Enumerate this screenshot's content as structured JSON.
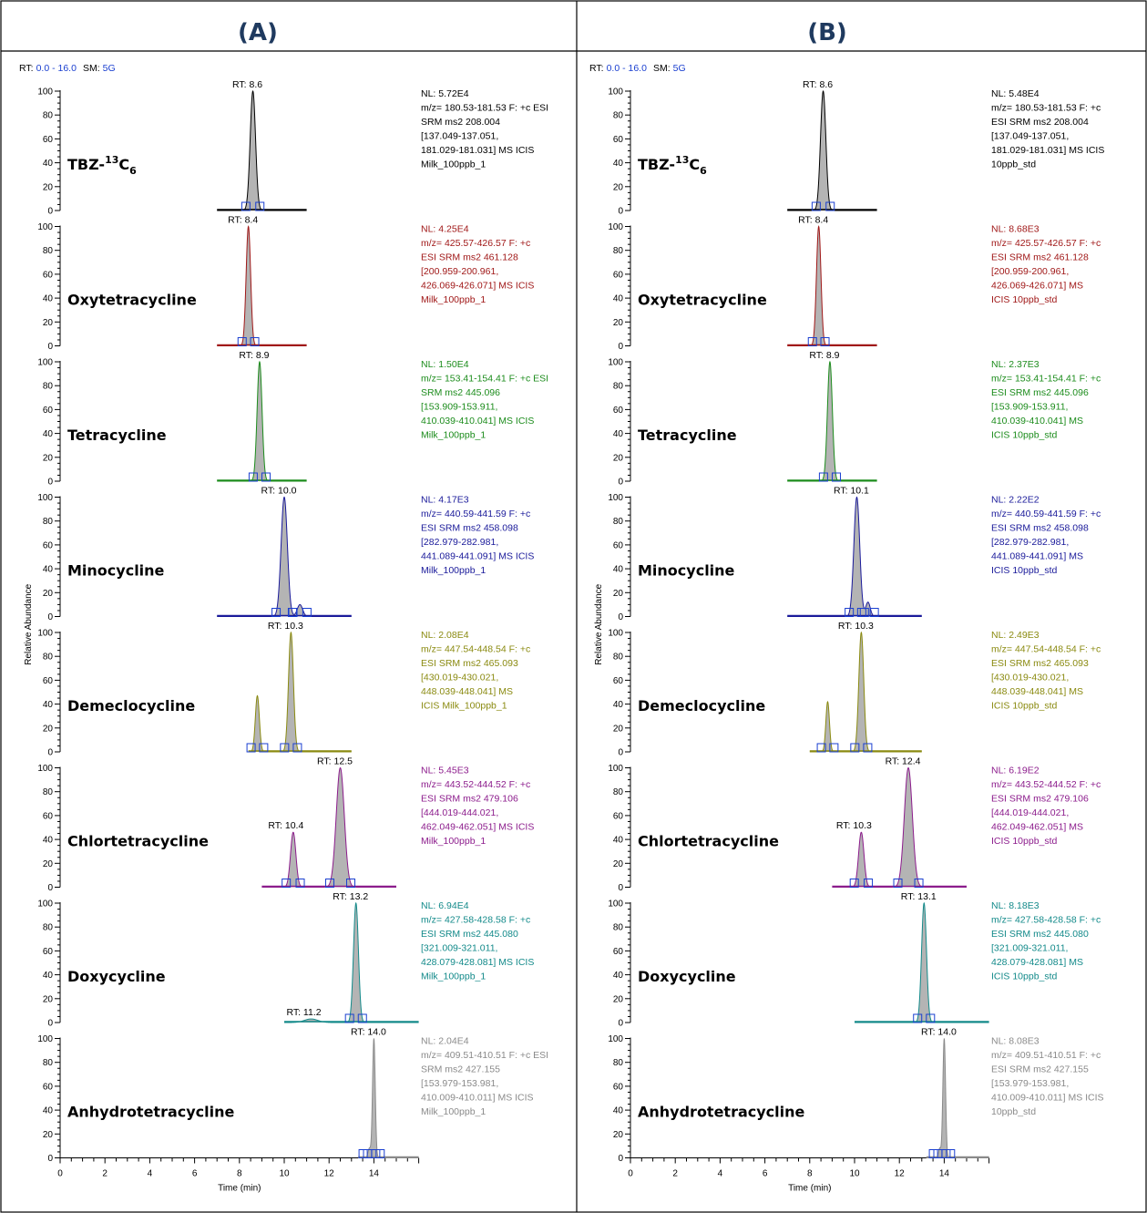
{
  "panels": [
    {
      "id": "A",
      "title": "(A)",
      "header": {
        "rt_prefix": "RT:",
        "rt_range": "0.0 - 16.0",
        "sm_prefix": "SM:",
        "sm_value": "5G"
      },
      "traces": [
        {
          "compound": "TBZ-",
          "sup": "13",
          "sub": "6",
          "rt_labels": [
            {
              "text": "RT: 8.6",
              "x": 8.6
            }
          ],
          "meta": [
            "NL: 5.72E4",
            "m/z= 180.53-181.53 F: +c ESI",
            "SRM ms2 208.004",
            "[137.049-137.051,",
            "181.029-181.031] MS ICIS",
            "Milk_100ppb_1"
          ]
        },
        {
          "compound": "Oxytetracycline",
          "rt_labels": [
            {
              "text": "RT: 8.4",
              "x": 8.4
            }
          ],
          "meta": [
            "NL: 4.25E4",
            "m/z= 425.57-426.57 F: +c",
            "ESI SRM ms2 461.128",
            "[200.959-200.961,",
            "426.069-426.071] MS ICIS",
            "Milk_100ppb_1"
          ]
        },
        {
          "compound": "Tetracycline",
          "rt_labels": [
            {
              "text": "RT: 8.9",
              "x": 8.9
            }
          ],
          "meta": [
            "NL: 1.50E4",
            "m/z= 153.41-154.41 F: +c ESI",
            "SRM ms2 445.096",
            "[153.909-153.911,",
            "410.039-410.041] MS ICIS",
            "Milk_100ppb_1"
          ]
        },
        {
          "compound": "Minocycline",
          "rt_labels": [
            {
              "text": "RT: 10.0",
              "x": 10.0
            }
          ],
          "meta": [
            "NL: 4.17E3",
            "m/z= 440.59-441.59 F: +c",
            "ESI SRM ms2 458.098",
            "[282.979-282.981,",
            "441.089-441.091] MS ICIS",
            "Milk_100ppb_1"
          ]
        },
        {
          "compound": "Demeclocycline",
          "rt_labels": [
            {
              "text": "RT: 10.3",
              "x": 10.3
            }
          ],
          "meta": [
            "NL: 2.08E4",
            "m/z= 447.54-448.54 F: +c",
            "ESI SRM ms2 465.093",
            "[430.019-430.021,",
            "448.039-448.041] MS",
            "ICIS Milk_100ppb_1"
          ]
        },
        {
          "compound": "Chlortetracycline",
          "rt_labels": [
            {
              "text": "RT: 12.5",
              "x": 12.5
            },
            {
              "text": "RT: 10.4",
              "x": 10.4
            }
          ],
          "meta": [
            "NL: 5.45E3",
            "m/z= 443.52-444.52 F: +c",
            "ESI SRM ms2 479.106",
            "[444.019-444.021,",
            "462.049-462.051] MS ICIS",
            "Milk_100ppb_1"
          ]
        },
        {
          "compound": "Doxycycline",
          "rt_labels": [
            {
              "text": "RT: 13.2",
              "x": 13.2
            },
            {
              "text": "RT: 11.2",
              "x": 11.2
            }
          ],
          "meta": [
            "NL: 6.94E4",
            "m/z= 427.58-428.58 F: +c",
            "ESI SRM ms2 445.080",
            "[321.009-321.011,",
            "428.079-428.081] MS ICIS",
            "Milk_100ppb_1"
          ]
        },
        {
          "compound": "Anhydrotetracycline",
          "rt_labels": [
            {
              "text": "RT: 14.0",
              "x": 14.0
            }
          ],
          "meta": [
            "NL: 2.04E4",
            "m/z= 409.51-410.51 F: +c ESI",
            "SRM ms2 427.155",
            "[153.979-153.981,",
            "410.009-410.011] MS ICIS",
            "Milk_100ppb_1"
          ]
        }
      ]
    },
    {
      "id": "B",
      "title": "(B)",
      "header": {
        "rt_prefix": "RT:",
        "rt_range": "0.0 - 16.0",
        "sm_prefix": "SM:",
        "sm_value": "5G"
      },
      "traces": [
        {
          "compound": "TBZ-",
          "sup": "13",
          "sub": "6",
          "rt_labels": [
            {
              "text": "RT: 8.6",
              "x": 8.6
            }
          ],
          "meta": [
            "NL: 5.48E4",
            "m/z= 180.53-181.53 F: +c",
            "ESI SRM ms2 208.004",
            "[137.049-137.051,",
            "181.029-181.031] MS ICIS",
            "10ppb_std"
          ]
        },
        {
          "compound": "Oxytetracycline",
          "rt_labels": [
            {
              "text": "RT: 8.4",
              "x": 8.4
            }
          ],
          "meta": [
            "NL: 8.68E3",
            "m/z= 425.57-426.57 F: +c",
            "ESI SRM ms2 461.128",
            "[200.959-200.961,",
            "426.069-426.071] MS",
            "ICIS 10ppb_std"
          ]
        },
        {
          "compound": "Tetracycline",
          "rt_labels": [
            {
              "text": "RT: 8.9",
              "x": 8.9
            }
          ],
          "meta": [
            "NL: 2.37E3",
            "m/z= 153.41-154.41 F: +c",
            "ESI SRM ms2 445.096",
            "[153.909-153.911,",
            "410.039-410.041] MS",
            "ICIS 10ppb_std"
          ]
        },
        {
          "compound": "Minocycline",
          "rt_labels": [
            {
              "text": "RT: 10.1",
              "x": 10.1
            }
          ],
          "meta": [
            "NL: 2.22E2",
            "m/z= 440.59-441.59 F: +c",
            "ESI SRM ms2 458.098",
            "[282.979-282.981,",
            "441.089-441.091] MS",
            "ICIS 10ppb_std"
          ]
        },
        {
          "compound": "Demeclocycline",
          "rt_labels": [
            {
              "text": "RT: 10.3",
              "x": 10.3
            }
          ],
          "meta": [
            "NL: 2.49E3",
            "m/z= 447.54-448.54 F: +c",
            "ESI SRM ms2 465.093",
            "[430.019-430.021,",
            "448.039-448.041] MS",
            "ICIS 10ppb_std"
          ]
        },
        {
          "compound": "Chlortetracycline",
          "rt_labels": [
            {
              "text": "RT: 12.4",
              "x": 12.4
            },
            {
              "text": "RT: 10.3",
              "x": 10.3
            }
          ],
          "meta": [
            "NL: 6.19E2",
            "m/z= 443.52-444.52 F: +c",
            "ESI SRM ms2 479.106",
            "[444.019-444.021,",
            "462.049-462.051] MS",
            "ICIS 10ppb_std"
          ]
        },
        {
          "compound": "Doxycycline",
          "rt_labels": [
            {
              "text": "RT: 13.1",
              "x": 13.1
            }
          ],
          "meta": [
            "NL: 8.18E3",
            "m/z= 427.58-428.58 F: +c",
            "ESI SRM ms2 445.080",
            "[321.009-321.011,",
            "428.079-428.081] MS",
            "ICIS 10ppb_std"
          ]
        },
        {
          "compound": "Anhydrotetracycline",
          "rt_labels": [
            {
              "text": "RT: 14.0",
              "x": 14.0
            }
          ],
          "meta": [
            "NL: 8.08E3",
            "m/z= 409.51-410.51 F: +c",
            "ESI SRM ms2 427.155",
            "[153.979-153.981,",
            "410.009-410.011] MS ICIS",
            "10ppb_std"
          ]
        }
      ]
    }
  ],
  "axis": {
    "ylabel": "Relative Abundance",
    "xlabel": "Time (min)",
    "x_ticks": [
      "0",
      "2",
      "4",
      "6",
      "8",
      "10",
      "12",
      "14"
    ],
    "y_ticks": [
      "0",
      "20",
      "40",
      "60",
      "80",
      "100"
    ]
  },
  "colors": [
    "#000000",
    "#a01818",
    "#1c8c1c",
    "#1a1a9a",
    "#8a8a10",
    "#8c1c8c",
    "#138a8a",
    "#8a8a8a"
  ],
  "chart_data": {
    "type": "line",
    "x_unit": "min",
    "xlabel": "Time (min)",
    "ylabel": "Relative Abundance",
    "xlim": [
      0,
      16
    ],
    "ylim": [
      0,
      100
    ],
    "panels": [
      {
        "name": "A",
        "series": [
          {
            "name": "TBZ-13C6",
            "peaks": [
              {
                "rt": 8.6,
                "height": 100,
                "width": 0.12
              }
            ],
            "baseline_range": [
              7,
              11
            ]
          },
          {
            "name": "Oxytetracycline",
            "peaks": [
              {
                "rt": 8.4,
                "height": 100,
                "width": 0.1
              }
            ],
            "baseline_range": [
              7,
              11
            ]
          },
          {
            "name": "Tetracycline",
            "peaks": [
              {
                "rt": 8.9,
                "height": 100,
                "width": 0.11
              }
            ],
            "baseline_range": [
              7,
              11
            ]
          },
          {
            "name": "Minocycline",
            "peaks": [
              {
                "rt": 10.0,
                "height": 100,
                "width": 0.14
              },
              {
                "rt": 10.7,
                "height": 10,
                "width": 0.12
              }
            ],
            "baseline_range": [
              7,
              13
            ]
          },
          {
            "name": "Demeclocycline",
            "peaks": [
              {
                "rt": 8.8,
                "height": 47,
                "width": 0.09
              },
              {
                "rt": 10.3,
                "height": 100,
                "width": 0.11
              }
            ],
            "baseline_range": [
              8.4,
              13
            ]
          },
          {
            "name": "Chlortetracycline",
            "peaks": [
              {
                "rt": 10.4,
                "height": 46,
                "width": 0.12
              },
              {
                "rt": 12.5,
                "height": 100,
                "width": 0.18
              }
            ],
            "baseline_range": [
              9,
              15
            ]
          },
          {
            "name": "Doxycycline",
            "peaks": [
              {
                "rt": 11.2,
                "height": 3,
                "width": 0.3
              },
              {
                "rt": 13.2,
                "height": 100,
                "width": 0.11
              }
            ],
            "baseline_range": [
              10,
              16
            ]
          },
          {
            "name": "Anhydrotetracycline",
            "peaks": [
              {
                "rt": 13.8,
                "height": 8,
                "width": 0.06
              },
              {
                "rt": 14.0,
                "height": 100,
                "width": 0.06
              }
            ],
            "baseline_range": [
              13.3,
              16
            ]
          }
        ]
      },
      {
        "name": "B",
        "series": [
          {
            "name": "TBZ-13C6",
            "peaks": [
              {
                "rt": 8.6,
                "height": 100,
                "width": 0.12
              }
            ],
            "baseline_range": [
              7,
              11
            ]
          },
          {
            "name": "Oxytetracycline",
            "peaks": [
              {
                "rt": 8.4,
                "height": 100,
                "width": 0.1
              }
            ],
            "baseline_range": [
              7,
              11
            ]
          },
          {
            "name": "Tetracycline",
            "peaks": [
              {
                "rt": 8.9,
                "height": 100,
                "width": 0.11
              }
            ],
            "baseline_range": [
              7,
              11
            ]
          },
          {
            "name": "Minocycline",
            "peaks": [
              {
                "rt": 10.1,
                "height": 100,
                "width": 0.13
              },
              {
                "rt": 10.6,
                "height": 12,
                "width": 0.1
              }
            ],
            "baseline_range": [
              7,
              13
            ]
          },
          {
            "name": "Demeclocycline",
            "peaks": [
              {
                "rt": 8.8,
                "height": 42,
                "width": 0.08
              },
              {
                "rt": 10.3,
                "height": 100,
                "width": 0.11
              }
            ],
            "baseline_range": [
              8,
              13
            ]
          },
          {
            "name": "Chlortetracycline",
            "peaks": [
              {
                "rt": 10.3,
                "height": 46,
                "width": 0.12
              },
              {
                "rt": 12.4,
                "height": 100,
                "width": 0.18
              }
            ],
            "baseline_range": [
              9,
              15
            ]
          },
          {
            "name": "Doxycycline",
            "peaks": [
              {
                "rt": 13.1,
                "height": 100,
                "width": 0.11
              }
            ],
            "baseline_range": [
              10,
              16
            ]
          },
          {
            "name": "Anhydrotetracycline",
            "peaks": [
              {
                "rt": 13.8,
                "height": 8,
                "width": 0.05
              },
              {
                "rt": 14.0,
                "height": 100,
                "width": 0.06
              }
            ],
            "baseline_range": [
              13.2,
              16
            ]
          }
        ]
      }
    ]
  }
}
